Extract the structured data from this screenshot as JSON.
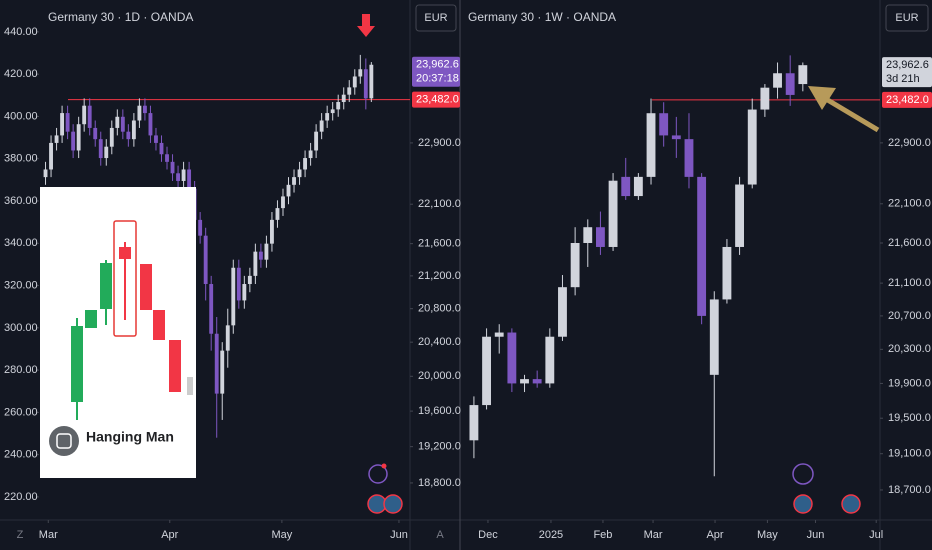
{
  "chart_data": [
    {
      "type": "candlestick",
      "title": "Germany 30 · 1D · OANDA",
      "currency": "EUR",
      "axis_letter": "Z",
      "up_color": "#d1d4dc",
      "down_color": "#7e57c2",
      "log_scale": true,
      "grid": false,
      "open": [
        22450,
        22550,
        22900,
        23000,
        23300,
        23050,
        22800,
        23150,
        23400,
        23100,
        22950,
        22700,
        22850,
        23100,
        23250,
        23050,
        22950,
        23200,
        23400,
        23300,
        23000,
        22900,
        22750,
        22650,
        22500,
        22400,
        22550,
        22300,
        21900,
        21700,
        21100,
        20500,
        19800,
        20300,
        20600,
        21300,
        20900,
        21100,
        21200,
        21500,
        21400,
        21600,
        21900,
        22050,
        22200,
        22350,
        22450,
        22550,
        22700,
        22800,
        23050,
        23200,
        23300,
        23350,
        23450,
        23550,
        23650,
        23800,
        23900,
        23500
      ],
      "high": [
        22650,
        23000,
        23100,
        23400,
        23400,
        23150,
        23250,
        23500,
        23500,
        23200,
        23050,
        22950,
        23200,
        23350,
        23350,
        23150,
        23300,
        23500,
        23500,
        23400,
        23100,
        23000,
        22850,
        22750,
        22600,
        22650,
        22650,
        22400,
        22000,
        21800,
        21200,
        20700,
        20400,
        20800,
        21400,
        21400,
        21200,
        21300,
        21600,
        21600,
        21700,
        22000,
        22150,
        22300,
        22450,
        22550,
        22650,
        22800,
        22900,
        23150,
        23300,
        23400,
        23450,
        23550,
        23650,
        23750,
        23900,
        24100,
        24050,
        24000
      ],
      "low": [
        22350,
        22450,
        22800,
        22900,
        22950,
        22700,
        22700,
        23050,
        23000,
        22850,
        22600,
        22600,
        22750,
        23000,
        22950,
        22850,
        22850,
        23100,
        23200,
        22900,
        22800,
        22650,
        22550,
        22400,
        22300,
        22300,
        22200,
        21800,
        21600,
        20900,
        20300,
        19300,
        19500,
        20100,
        20500,
        20800,
        20800,
        21000,
        21100,
        21300,
        21300,
        21500,
        21800,
        21950,
        22100,
        22250,
        22350,
        22450,
        22600,
        22700,
        22950,
        23100,
        23200,
        23250,
        23350,
        23450,
        23550,
        23700,
        23350,
        23450
      ],
      "close": [
        22550,
        22900,
        23000,
        23300,
        23050,
        22800,
        23150,
        23400,
        23100,
        22950,
        22700,
        22850,
        23100,
        23250,
        23050,
        22950,
        23200,
        23400,
        23300,
        23000,
        22900,
        22750,
        22650,
        22500,
        22400,
        22550,
        22300,
        21900,
        21700,
        21100,
        20500,
        19800,
        20300,
        20600,
        21300,
        20900,
        21100,
        21200,
        21500,
        21400,
        21600,
        21900,
        22050,
        22200,
        22350,
        22450,
        22550,
        22700,
        22800,
        23050,
        23200,
        23300,
        23350,
        23450,
        23550,
        23650,
        23800,
        23900,
        23500,
        23962.6
      ],
      "ylim": [
        18400,
        24880
      ],
      "yticks": [
        {
          "value": 22900,
          "label": "22,900.0"
        },
        {
          "value": 22100,
          "label": "22,100.0"
        },
        {
          "value": 21600,
          "label": "21,600.0"
        },
        {
          "value": 21200,
          "label": "21,200.0"
        },
        {
          "value": 20800,
          "label": "20,800.0"
        },
        {
          "value": 20400,
          "label": "20,400.0"
        },
        {
          "value": 20000,
          "label": "20,000.0"
        },
        {
          "value": 19600,
          "label": "19,600.0"
        },
        {
          "value": 19200,
          "label": "19,200.0"
        },
        {
          "value": 18800,
          "label": "18,800.0"
        }
      ],
      "y2lim": [
        209.1,
        455.1
      ],
      "y2ticks": [
        {
          "value": 440,
          "label": "440.00"
        },
        {
          "value": 420,
          "label": "420.00"
        },
        {
          "value": 400,
          "label": "400.00"
        },
        {
          "value": 380,
          "label": "380.00"
        },
        {
          "value": 360,
          "label": "360.00"
        },
        {
          "value": 340,
          "label": "340.00"
        },
        {
          "value": 320,
          "label": "320.00"
        },
        {
          "value": 300,
          "label": "300.00"
        },
        {
          "value": 280,
          "label": "280.00"
        },
        {
          "value": 260,
          "label": "260.00"
        },
        {
          "value": 240,
          "label": "240.00"
        },
        {
          "value": 220,
          "label": "220.00"
        }
      ],
      "xlim": [
        -1,
        66
      ],
      "xticks": [
        {
          "value": 0.5,
          "label": "Mar"
        },
        {
          "value": 22.5,
          "label": "Apr"
        },
        {
          "value": 42.8,
          "label": "May"
        },
        {
          "value": 64,
          "label": "Jun"
        }
      ],
      "last_price": {
        "value": 23962.6,
        "label": "23,962.6"
      },
      "countdown": "20:37:18",
      "level": {
        "value": 23482.0,
        "label": "23,482.0",
        "color": "#f23645"
      },
      "inset_label": "Hanging Man"
    },
    {
      "type": "candlestick",
      "title": "Germany 30 · 1W · OANDA",
      "currency": "EUR",
      "axis_letter": "A",
      "up_color": "#d1d4dc",
      "down_color": "#7e57c2",
      "log_scale": true,
      "grid": false,
      "open": [
        19250,
        19650,
        20450,
        20500,
        19900,
        19950,
        19900,
        20450,
        21050,
        21600,
        21800,
        21550,
        22450,
        22200,
        22450,
        23300,
        23000,
        22950,
        22450,
        20000,
        20900,
        21550,
        22350,
        23350,
        23650,
        23850,
        23700
      ],
      "high": [
        19750,
        20550,
        20600,
        20550,
        20000,
        20050,
        20550,
        21200,
        21800,
        21900,
        22000,
        22500,
        22700,
        22500,
        23500,
        23450,
        23250,
        23300,
        22500,
        21000,
        21650,
        22450,
        23500,
        23700,
        24000,
        24100,
        24000
      ],
      "low": [
        19050,
        19600,
        20250,
        19800,
        19800,
        19850,
        19850,
        20400,
        20950,
        21300,
        21450,
        21500,
        22150,
        22150,
        22350,
        22850,
        22700,
        22300,
        20600,
        18850,
        20850,
        21450,
        22300,
        23250,
        23500,
        23400,
        23600
      ],
      "close": [
        19650,
        20450,
        20500,
        19900,
        19950,
        19900,
        20450,
        21050,
        21600,
        21800,
        21550,
        22400,
        22200,
        22450,
        23300,
        23000,
        22950,
        22450,
        20700,
        20900,
        21550,
        22350,
        23350,
        23650,
        23850,
        23550,
        23962.6
      ],
      "ylim": [
        18375,
        24892
      ],
      "yticks": [
        {
          "value": 22900,
          "label": "22,900.0"
        },
        {
          "value": 22100,
          "label": "22,100.0"
        },
        {
          "value": 21600,
          "label": "21,600.0"
        },
        {
          "value": 21100,
          "label": "21,100.0"
        },
        {
          "value": 20700,
          "label": "20,700.0"
        },
        {
          "value": 20300,
          "label": "20,300.0"
        },
        {
          "value": 19900,
          "label": "19,900.0"
        },
        {
          "value": 19500,
          "label": "19,500.0"
        },
        {
          "value": 19100,
          "label": "19,100.0"
        },
        {
          "value": 18700,
          "label": "18,700.0"
        }
      ],
      "xlim": [
        -1.1,
        32.1
      ],
      "xticks": [
        {
          "value": 1.11,
          "label": "Dec"
        },
        {
          "value": 6.09,
          "label": "2025"
        },
        {
          "value": 10.2,
          "label": "Feb"
        },
        {
          "value": 14.16,
          "label": "Mar"
        },
        {
          "value": 19.06,
          "label": "Apr"
        },
        {
          "value": 23.2,
          "label": "May"
        },
        {
          "value": 27.0,
          "label": "Jun"
        },
        {
          "value": 31.8,
          "label": "Jul"
        }
      ],
      "last_price": {
        "value": 23962.6,
        "label": "23,962.6"
      },
      "countdown": "3d 21h",
      "level": {
        "value": 23482.0,
        "label": "23,482.0",
        "color": "#f23645"
      }
    }
  ]
}
